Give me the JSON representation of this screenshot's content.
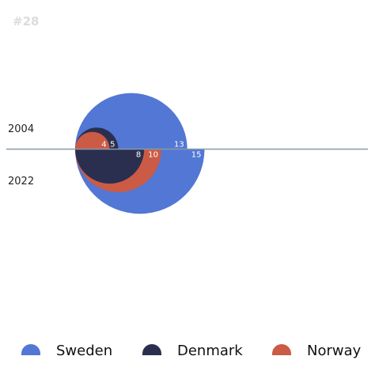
{
  "chart_data": {
    "type": "semicircle-area",
    "title": "#28",
    "rows": [
      "2004",
      "2022"
    ],
    "series": [
      {
        "name": "Sweden",
        "color": "#5277d4",
        "values": [
          13,
          15
        ]
      },
      {
        "name": "Norway",
        "color": "#cb5b45",
        "values": [
          4,
          10
        ]
      },
      {
        "name": "Denmark",
        "color": "#2b2f4f",
        "values": [
          5,
          8
        ]
      }
    ],
    "legend_order": [
      "Sweden",
      "Denmark",
      "Norway"
    ],
    "legend": "bottom",
    "grid": false
  }
}
